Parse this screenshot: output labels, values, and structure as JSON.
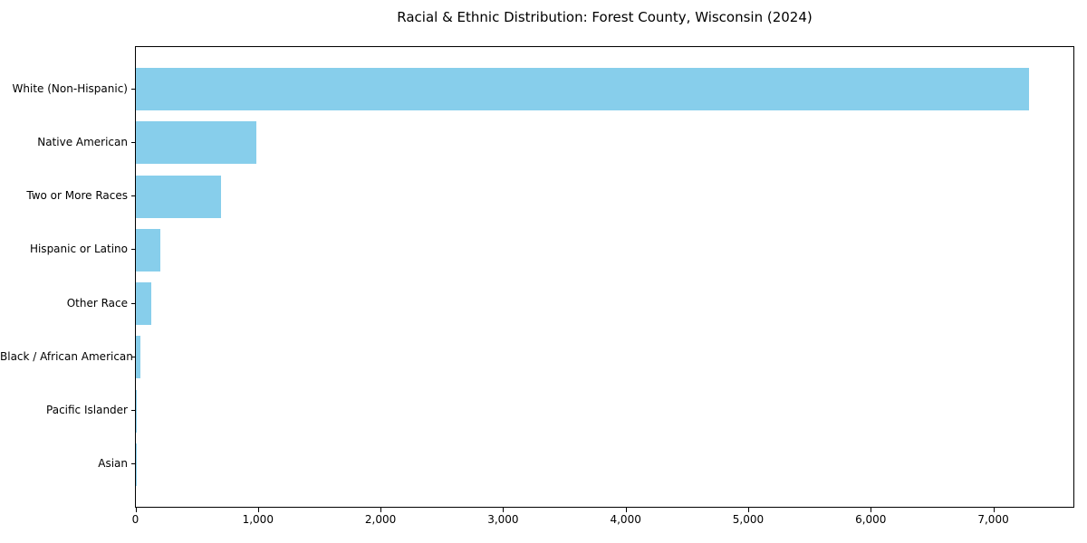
{
  "title": "Racial & Ethnic Distribution: Forest County, Wisconsin (2024)",
  "colors": {
    "bar": "#87CEEB",
    "axis": "#000000",
    "background": "#FFFFFF",
    "text": "#000000"
  },
  "chart_data": {
    "type": "bar",
    "orientation": "horizontal",
    "title": "Racial & Ethnic Distribution: Forest County, Wisconsin (2024)",
    "categories": [
      "White (Non-Hispanic)",
      "Native American",
      "Two or More Races",
      "Hispanic or Latino",
      "Other Race",
      "Black / African American",
      "Pacific Islander",
      "Asian"
    ],
    "values": [
      7290,
      985,
      695,
      200,
      125,
      35,
      8,
      4
    ],
    "xlabel": "",
    "ylabel": "",
    "xlim": [
      0,
      7650
    ],
    "xticks": [
      0,
      1000,
      2000,
      3000,
      4000,
      5000,
      6000,
      7000
    ],
    "xtick_labels": [
      "0",
      "1,000",
      "2,000",
      "3,000",
      "4,000",
      "5,000",
      "6,000",
      "7,000"
    ],
    "bar_color": "#87CEEB",
    "grid": false,
    "legend": null
  }
}
